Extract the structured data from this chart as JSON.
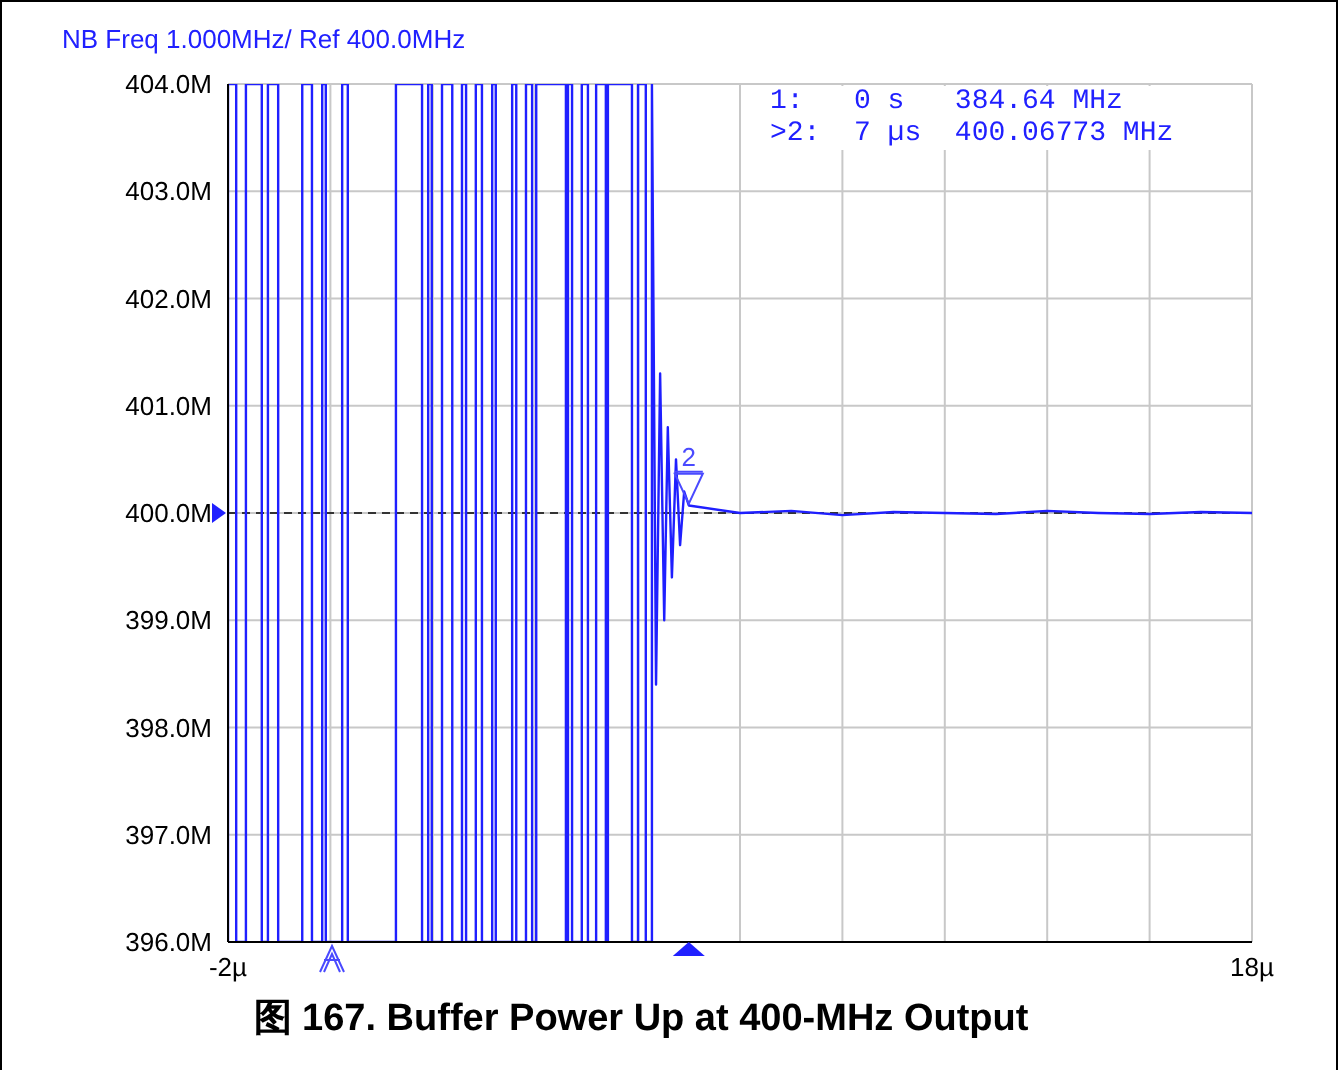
{
  "chart_data": {
    "type": "line",
    "title": "图 167. Buffer Power Up at 400-MHz Output",
    "annotations": [
      "NB Freq 1.000MHz/ Ref 400.0MHz",
      "1:   0 s   384.64 MHz",
      ">2:  7 µs  400.06773 MHz",
      {
        "text": "2",
        "x": 7,
        "y": 400.06773
      }
    ],
    "x": [
      -2,
      -2,
      -1.84,
      -1.84,
      -1.65,
      -1.65,
      -1.34,
      -1.34,
      -1.22,
      -1.22,
      -1.02,
      -1.02,
      -0.55,
      -0.55,
      -0.36,
      -0.36,
      -0.16,
      -0.16,
      -0.09,
      -0.09,
      0.23,
      0.23,
      0.34,
      0.34,
      1.28,
      1.28,
      1.79,
      1.79,
      1.91,
      1.91,
      1.98,
      1.98,
      2.18,
      2.18,
      2.38,
      2.38,
      2.57,
      2.57,
      2.65,
      2.65,
      2.84,
      2.84,
      2.96,
      2.96,
      3.16,
      3.16,
      3.23,
      3.23,
      3.55,
      3.55,
      3.63,
      3.63,
      3.82,
      3.82,
      3.94,
      3.94,
      4.02,
      4.02,
      4.6,
      4.6,
      4.64,
      4.64,
      4.72,
      4.72,
      4.91,
      4.91,
      5.03,
      5.03,
      5.19,
      5.19,
      5.38,
      5.38,
      5.42,
      5.42,
      5.89,
      5.89,
      6.01,
      6.01,
      6.16,
      6.16,
      6.28,
      6.28,
      6.36,
      6.44,
      6.52,
      6.59,
      6.67,
      6.75,
      6.83,
      6.91,
      7,
      8,
      9,
      10,
      11,
      12,
      13,
      14,
      15,
      16,
      17,
      18
    ],
    "series": [
      {
        "color": "#1f1fff",
        "values": [
          396,
          404,
          404,
          396,
          396,
          404,
          404,
          396,
          396,
          404,
          404,
          396,
          396,
          404,
          404,
          396,
          396,
          404,
          404,
          396,
          396,
          404,
          404,
          396,
          396,
          404,
          404,
          396,
          396,
          404,
          404,
          396,
          396,
          404,
          404,
          396,
          396,
          404,
          404,
          396,
          396,
          404,
          404,
          396,
          396,
          404,
          404,
          396,
          396,
          404,
          404,
          396,
          396,
          404,
          404,
          396,
          396,
          404,
          404,
          396,
          396,
          404,
          404,
          396,
          396,
          404,
          404,
          396,
          396,
          404,
          404,
          396,
          396,
          404,
          404,
          396,
          396,
          404,
          404,
          396,
          396,
          404,
          398.4,
          401.3,
          399.0,
          400.8,
          399.4,
          400.5,
          399.7,
          400.2,
          400.07,
          400.0,
          400.02,
          399.98,
          400.01,
          400.0,
          399.99,
          400.02,
          400.0,
          399.99,
          400.01,
          400.0
        ]
      }
    ],
    "xlim": [
      -2,
      18
    ],
    "xticks": [
      {
        "value": -2,
        "label": "-2µ"
      },
      {
        "value": 0,
        "label": null
      },
      {
        "value": 2,
        "label": null
      },
      {
        "value": 4,
        "label": null
      },
      {
        "value": 6,
        "label": null
      },
      {
        "value": 8,
        "label": null
      },
      {
        "value": 10,
        "label": null
      },
      {
        "value": 12,
        "label": null
      },
      {
        "value": 14,
        "label": null
      },
      {
        "value": 16,
        "label": null
      },
      {
        "value": 18,
        "label": "18µ"
      }
    ],
    "ylim": [
      396,
      404
    ],
    "yticks": [
      {
        "value": 396,
        "label": "396.0M"
      },
      {
        "value": 397,
        "label": "397.0M"
      },
      {
        "value": 398,
        "label": "398.0M"
      },
      {
        "value": 399,
        "label": "399.0M"
      },
      {
        "value": 400,
        "label": "400.0M"
      },
      {
        "value": 401,
        "label": "401.0M"
      },
      {
        "value": 402,
        "label": "402.0M"
      },
      {
        "value": 403,
        "label": "403.0M"
      },
      {
        "value": 404,
        "label": "404.0M"
      }
    ],
    "grid": true,
    "ref_lines": [
      {
        "axis": "y",
        "value": 400,
        "line_style": "dashed",
        "color": "#333333"
      }
    ]
  }
}
